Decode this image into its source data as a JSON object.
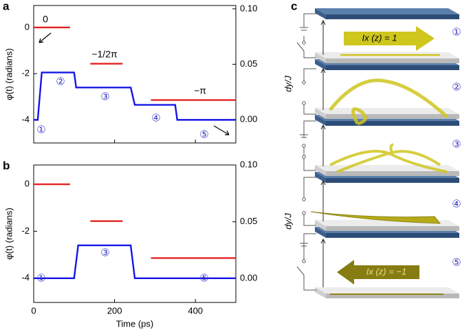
{
  "chart_data": [
    {
      "type": "line",
      "label": "a",
      "ylabel": "φ(t) (radians)",
      "xlim": [
        0,
        500
      ],
      "xticks": [
        0,
        200,
        400
      ],
      "ylim": [
        -5,
        0.95
      ],
      "yticks": [
        -4,
        -2,
        0
      ],
      "y2lim": [
        -0.021,
        0.103
      ],
      "y2ticks": [
        {
          "value": 0,
          "label": "0.00"
        },
        {
          "value": 0.05,
          "label": "0.05"
        },
        {
          "value": 0.1,
          "label": "0.10"
        }
      ],
      "series": [
        {
          "color": "#1414e6",
          "x": [
            0,
            10,
            20,
            100,
            105,
            240,
            250,
            350,
            355,
            500
          ],
          "values": [
            -4,
            -4,
            -1.95,
            -1.95,
            -2.6,
            -2.6,
            -3.35,
            -3.35,
            -4,
            -4
          ]
        },
        {
          "color": "#e32020",
          "x": [
            0,
            90,
            115,
            140,
            220,
            255,
            290,
            500
          ],
          "values": [
            0,
            0,
            null,
            -1.5708,
            -1.5708,
            null,
            -3.1416,
            -3.1416
          ]
        }
      ],
      "annotations": [
        "0",
        "−1/2π",
        "−π",
        "①",
        "②",
        "③",
        "④",
        "⑤"
      ]
    },
    {
      "type": "line",
      "label": "b",
      "ylabel": "φ(t) (radians)",
      "xlabel": "Time (ps)",
      "xlim": [
        0,
        500
      ],
      "xticks": [
        0,
        200,
        400
      ],
      "ylim": [
        -5.03,
        0.82
      ],
      "yticks": [
        -4,
        -2,
        0
      ],
      "y2lim": [
        -0.021,
        0.1
      ],
      "y2ticks": [
        {
          "value": 0,
          "label": "0.00"
        },
        {
          "value": 0.05,
          "label": "0.05"
        },
        {
          "value": 0.1,
          "label": "0.10"
        }
      ],
      "series": [
        {
          "color": "#1414e6",
          "x": [
            0,
            100,
            110,
            240,
            250,
            500
          ],
          "values": [
            -4,
            -4,
            -2.6,
            -2.6,
            -4,
            -4
          ]
        },
        {
          "color": "#e32020",
          "x": [
            0,
            90,
            115,
            140,
            220,
            255,
            290,
            500
          ],
          "values": [
            0,
            0,
            null,
            -1.5708,
            -1.5708,
            null,
            -3.1416,
            -3.1416
          ]
        }
      ],
      "annotations": [
        "①",
        "③",
        "⑤"
      ]
    }
  ],
  "panel_c": {
    "label": "c",
    "arrow_top": "Ix (z) = 1",
    "arrow_bottom": "Ix (z) = −1",
    "ylabel_top": "dy/J",
    "ylabel_bottom": "dy/J",
    "steps": [
      "①",
      "②",
      "③",
      "④",
      "⑤"
    ]
  }
}
